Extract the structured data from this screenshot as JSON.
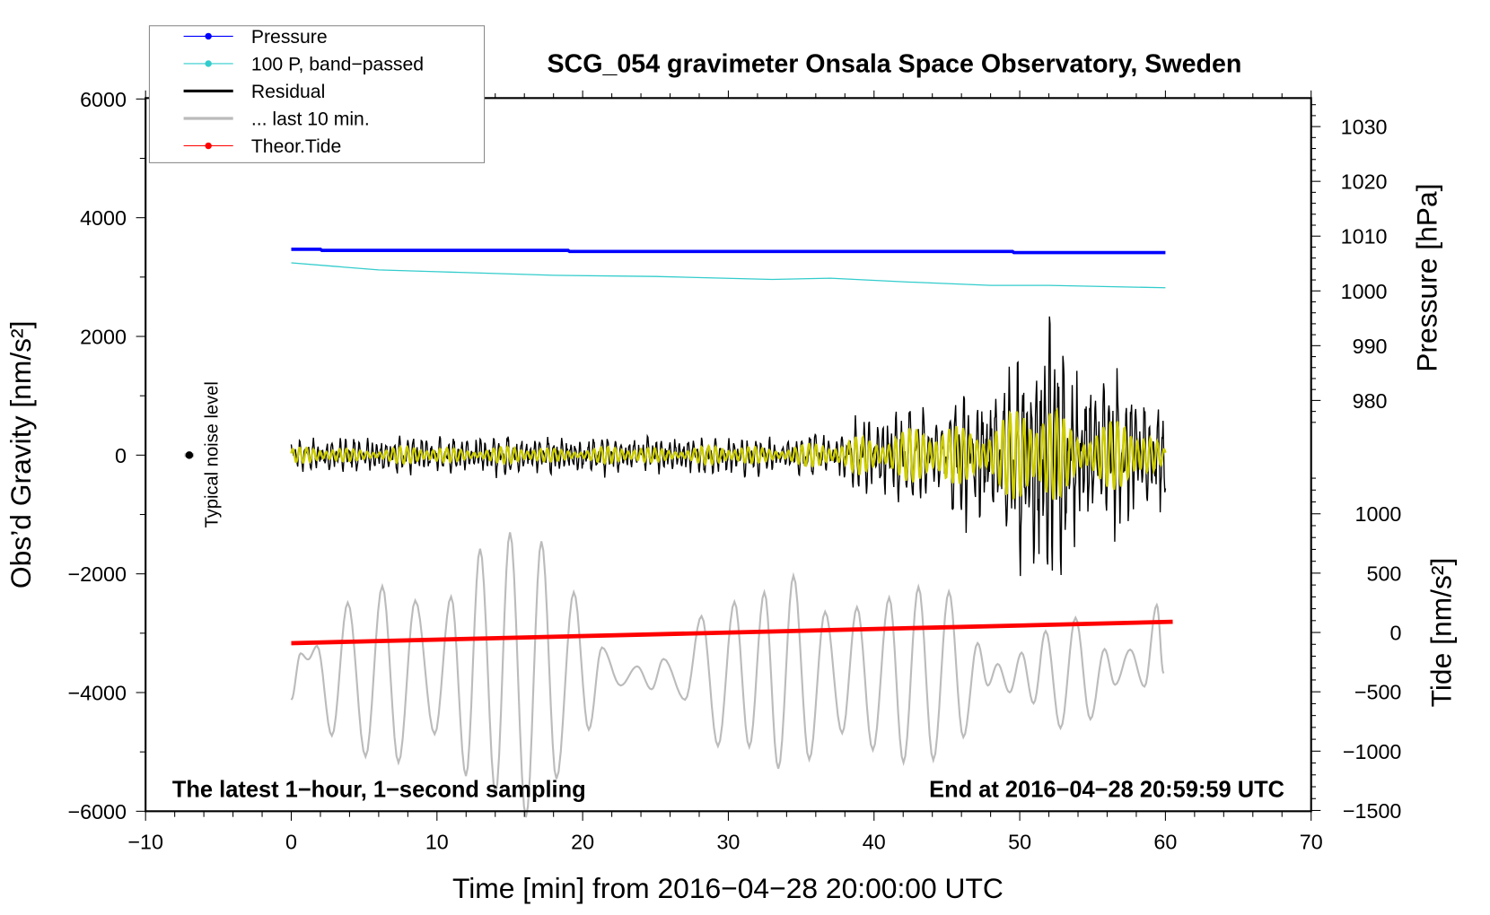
{
  "chart_data": {
    "type": "line",
    "title": "SCG_054 gravimeter Onsala Space Observatory, Sweden",
    "xlabel": "Time [min] from 2016−04−28 20:00:00 UTC",
    "ylabel_left": "Obs’d Gravity [nm/s²]",
    "ylabel_right_top": "Pressure [hPa]",
    "ylabel_right_bottom": "Tide [nm/s²]",
    "annotation_left": "The latest 1−hour, 1−second sampling",
    "annotation_right": "End at 2016−04−28 20:59:59 UTC",
    "noise_label": "Typical noise level",
    "xlim": [
      -10,
      70
    ],
    "ylim_left": [
      -6000,
      6000
    ],
    "x_ticks": [
      -10,
      0,
      10,
      20,
      30,
      40,
      50,
      60,
      70
    ],
    "x_tick_labels": [
      "−10",
      "0",
      "10",
      "20",
      "30",
      "40",
      "50",
      "60",
      "70"
    ],
    "y_left_ticks": [
      6000,
      4000,
      2000,
      0,
      -2000,
      -4000,
      -6000
    ],
    "y_left_tick_labels": [
      "6000",
      "4000",
      "2000",
      "0",
      "−2000",
      "−4000",
      "−6000"
    ],
    "pressure_ticks": [
      1030,
      1020,
      1010,
      1000,
      990,
      980
    ],
    "pressure_tick_labels": [
      "1030",
      "1020",
      "1010",
      "1000",
      "990",
      "980"
    ],
    "tide_ticks": [
      1000,
      500,
      0,
      -500,
      -1000,
      -1500
    ],
    "tide_tick_labels": [
      "1000",
      "500",
      "0",
      "−500",
      "−1000",
      "−1500"
    ],
    "grid": false,
    "legend_placement": "top-left",
    "legend": [
      {
        "label": "Pressure",
        "color": "#0000ff",
        "marker": "dot"
      },
      {
        "label": "100 P, band−passed",
        "color": "#33cccc",
        "marker": "dot"
      },
      {
        "label": "Residual",
        "color": "#000000",
        "marker": "line"
      },
      {
        "label": "... last 10 min.",
        "color": "#bbbbbb",
        "marker": "line"
      },
      {
        "label": "Theor.Tide",
        "color": "#ff0000",
        "marker": "dot"
      }
    ],
    "series": {
      "pressure_hPa": {
        "color": "#0000ff",
        "points": [
          [
            0,
            1007.6
          ],
          [
            2,
            1007.6
          ],
          [
            2.1,
            1007.4
          ],
          [
            19,
            1007.4
          ],
          [
            19.1,
            1007.2
          ],
          [
            49.5,
            1007.2
          ],
          [
            49.6,
            1007.0
          ],
          [
            60,
            1007.0
          ]
        ]
      },
      "pressure_bandpassed": {
        "color": "#33cccc",
        "points": [
          [
            0,
            3240
          ],
          [
            3,
            3180
          ],
          [
            6,
            3120
          ],
          [
            10,
            3090
          ],
          [
            18,
            3030
          ],
          [
            25,
            3010
          ],
          [
            33,
            2960
          ],
          [
            37,
            2980
          ],
          [
            42,
            2920
          ],
          [
            48,
            2860
          ],
          [
            52,
            2860
          ],
          [
            60,
            2820
          ]
        ]
      },
      "theor_tide": {
        "color": "#ff0000",
        "points": [
          [
            0,
            -90
          ],
          [
            60.5,
            90
          ]
        ]
      },
      "residual": {
        "color": "#000000",
        "envelope": [
          [
            0,
            250
          ],
          [
            5,
            300
          ],
          [
            10,
            300
          ],
          [
            15,
            350
          ],
          [
            20,
            300
          ],
          [
            25,
            280
          ],
          [
            30,
            300
          ],
          [
            35,
            280
          ],
          [
            38,
            350
          ],
          [
            39,
            650
          ],
          [
            42,
            700
          ],
          [
            45,
            500
          ],
          [
            46,
            1100
          ],
          [
            49,
            1200
          ],
          [
            50,
            1500
          ],
          [
            51,
            1900
          ],
          [
            52.5,
            2400
          ],
          [
            54,
            1400
          ],
          [
            57,
            1300
          ],
          [
            59,
            900
          ],
          [
            60,
            1000
          ]
        ]
      },
      "residual_filtered": {
        "color": "#cccc00",
        "envelope": [
          [
            0,
            120
          ],
          [
            10,
            140
          ],
          [
            20,
            130
          ],
          [
            30,
            150
          ],
          [
            38,
            200
          ],
          [
            39,
            420
          ],
          [
            44,
            450
          ],
          [
            46,
            600
          ],
          [
            49,
            700
          ],
          [
            52.5,
            900
          ],
          [
            54,
            600
          ],
          [
            58,
            550
          ],
          [
            59.5,
            250
          ],
          [
            60,
            100
          ]
        ]
      },
      "last_10_min": {
        "color": "#bbbbbb",
        "extrema": [
          [
            0,
            -4122
          ],
          [
            0.64,
            -3340
          ],
          [
            1.15,
            -3443
          ],
          [
            1.77,
            -3215
          ],
          [
            2.79,
            -4728
          ],
          [
            3.88,
            -2485
          ],
          [
            5.1,
            -5080
          ],
          [
            6.25,
            -2208
          ],
          [
            7.36,
            -5181
          ],
          [
            8.51,
            -2449
          ],
          [
            9.84,
            -4702
          ],
          [
            10.97,
            -2385
          ],
          [
            11.99,
            -5407
          ],
          [
            12.96,
            -1578
          ],
          [
            14.02,
            -5700
          ],
          [
            15.01,
            -1301
          ],
          [
            16.11,
            -6100
          ],
          [
            17.17,
            -1453
          ],
          [
            18.2,
            -5455
          ],
          [
            19.39,
            -2308
          ],
          [
            20.42,
            -4627
          ],
          [
            21.32,
            -3241
          ],
          [
            22.61,
            -3882
          ],
          [
            23.74,
            -3558
          ],
          [
            24.73,
            -3946
          ],
          [
            25.55,
            -3433
          ],
          [
            27.03,
            -4122
          ],
          [
            28.16,
            -2712
          ],
          [
            29.29,
            -4904
          ],
          [
            30.42,
            -2470
          ],
          [
            31.44,
            -4918
          ],
          [
            32.47,
            -2308
          ],
          [
            33.43,
            -5282
          ],
          [
            34.47,
            -2031
          ],
          [
            35.55,
            -5130
          ],
          [
            36.64,
            -2637
          ],
          [
            37.81,
            -4686
          ],
          [
            38.83,
            -2562
          ],
          [
            39.92,
            -4969
          ],
          [
            41.04,
            -2400
          ],
          [
            42.02,
            -5181
          ],
          [
            43.05,
            -2219
          ],
          [
            44.07,
            -5141
          ],
          [
            45.14,
            -2299
          ],
          [
            46.13,
            -4753
          ],
          [
            47.11,
            -3166
          ],
          [
            47.81,
            -3882
          ],
          [
            48.49,
            -3518
          ],
          [
            49.31,
            -3997
          ],
          [
            50.13,
            -3327
          ],
          [
            50.95,
            -4183
          ],
          [
            51.78,
            -2964
          ],
          [
            52.8,
            -4601
          ],
          [
            53.83,
            -2738
          ],
          [
            54.85,
            -4450
          ],
          [
            55.82,
            -3266
          ],
          [
            56.54,
            -3869
          ],
          [
            57.58,
            -3276
          ],
          [
            58.56,
            -3900
          ],
          [
            59.41,
            -2523
          ],
          [
            59.87,
            -3676
          ]
        ]
      },
      "noise_level": {
        "color": "#000000",
        "x": -7,
        "y": 0
      }
    }
  }
}
